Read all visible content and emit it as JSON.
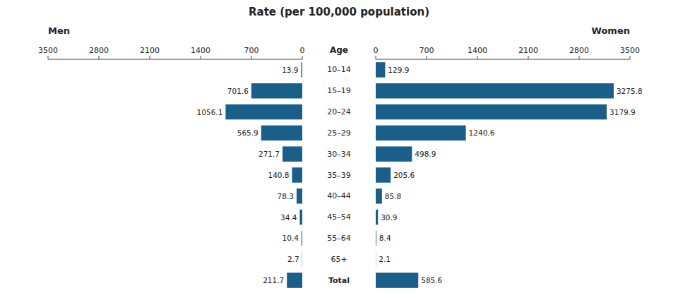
{
  "chart_data": {
    "type": "bar",
    "orientation": "horizontal",
    "title": "Rate (per 100,000 population)",
    "y_label": "Age",
    "categories": [
      "10–14",
      "15–19",
      "20–24",
      "25–29",
      "30–34",
      "35–39",
      "40–44",
      "45–54",
      "55–64",
      "65+",
      "Total"
    ],
    "series": [
      {
        "name": "Men",
        "color": "#1a5f8a",
        "values": [
          13.9,
          701.6,
          1056.1,
          565.9,
          271.7,
          140.8,
          78.3,
          34.4,
          10.4,
          2.7,
          211.7
        ]
      },
      {
        "name": "Women",
        "color": "#1a5f8a",
        "values": [
          129.9,
          3275.8,
          3179.9,
          1240.6,
          498.9,
          205.6,
          85.8,
          30.9,
          8.4,
          2.1,
          585.6
        ]
      }
    ],
    "xlim": [
      0,
      3500
    ],
    "xticks": [
      0,
      700,
      1400,
      2100,
      2800,
      3500
    ],
    "data_labels": true,
    "grid": false
  }
}
